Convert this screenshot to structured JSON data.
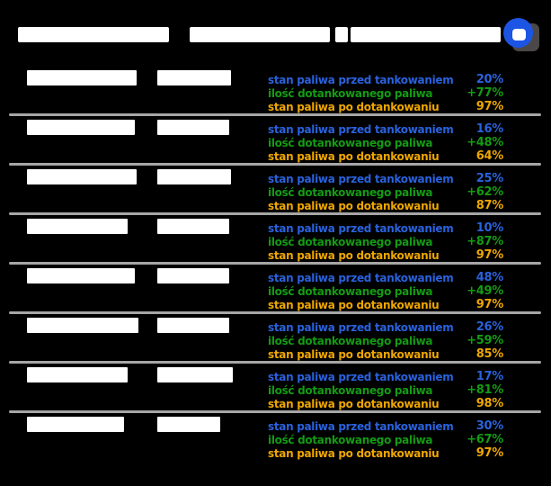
{
  "app": {
    "background": "#000000",
    "header": {
      "title_redacted": true,
      "title_segment_widths": [
        168,
        156,
        14,
        167
      ],
      "logo_name": "app-logo"
    },
    "metric_labels": {
      "before": "stan paliwa przed tankowaniem",
      "added": "ilość dotankowanego paliwa",
      "after": "stan paliwa po dotankowaniu"
    },
    "rows": [
      {
        "before": "20%",
        "added": "+77%",
        "after": "97%",
        "c1w": 122,
        "c2w": 82
      },
      {
        "before": "16%",
        "added": "+48%",
        "after": "64%",
        "c1w": 120,
        "c2w": 80
      },
      {
        "before": "25%",
        "added": "+62%",
        "after": "87%",
        "c1w": 122,
        "c2w": 82
      },
      {
        "before": "10%",
        "added": "+87%",
        "after": "97%",
        "c1w": 112,
        "c2w": 80
      },
      {
        "before": "48%",
        "added": "+49%",
        "after": "97%",
        "c1w": 120,
        "c2w": 80
      },
      {
        "before": "26%",
        "added": "+59%",
        "after": "85%",
        "c1w": 124,
        "c2w": 80
      },
      {
        "before": "17%",
        "added": "+81%",
        "after": "98%",
        "c1w": 112,
        "c2w": 84
      },
      {
        "before": "30%",
        "added": "+67%",
        "after": "97%",
        "c1w": 108,
        "c2w": 70
      }
    ],
    "colors": {
      "blue": "#2a62dd",
      "green": "#149b14",
      "yellow": "#efa700",
      "separator": "#a6a6a6",
      "redaction": "#ffffff",
      "logo_blue": "#1c55e4",
      "logo_shadow": "#4c4848"
    }
  }
}
